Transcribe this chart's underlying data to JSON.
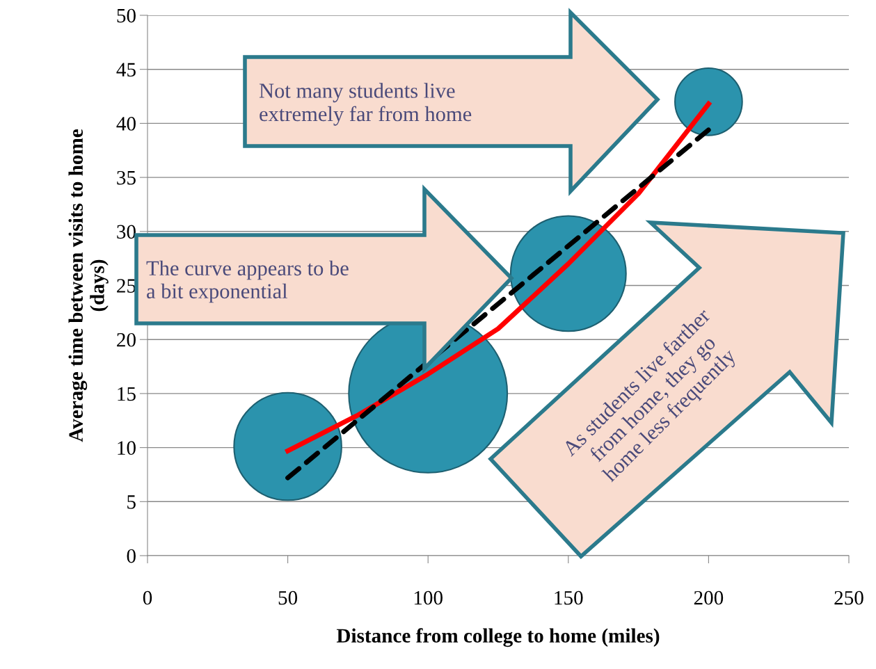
{
  "chart_data": {
    "type": "bubble",
    "xlabel": "Distance from college to home (miles)",
    "ylabel": "Average time between visits to home\n(days)",
    "xlim": [
      0,
      250
    ],
    "ylim": [
      0,
      50
    ],
    "xticks": [
      0,
      50,
      100,
      150,
      200,
      250
    ],
    "yticks": [
      0,
      5,
      10,
      15,
      20,
      25,
      30,
      35,
      40,
      45,
      50
    ],
    "grid": "y",
    "series": [
      {
        "color": "#2b93ad",
        "x": [
          50,
          100,
          150,
          200
        ],
        "values": [
          10.1,
          15,
          26.1,
          42
        ],
        "sizes": [
          0.46,
          1,
          0.53,
          0.18
        ]
      },
      {
        "type": "line",
        "color": "#ff0000",
        "line_style": "solid",
        "x": [
          50,
          75,
          100,
          125,
          150,
          175,
          200
        ],
        "values": [
          9.7,
          13,
          16.8,
          21,
          27,
          33.5,
          41.8
        ]
      },
      {
        "type": "line",
        "color": "#000000",
        "line_style": "dashed",
        "x": [
          50,
          200
        ],
        "values": [
          7.2,
          39.4
        ]
      }
    ],
    "annotations": [
      "Not many students live\nextremely far from home",
      "The curve appears to be\na bit exponential",
      "As students live farther\nfrom home, they go\nhome less frequently"
    ]
  }
}
